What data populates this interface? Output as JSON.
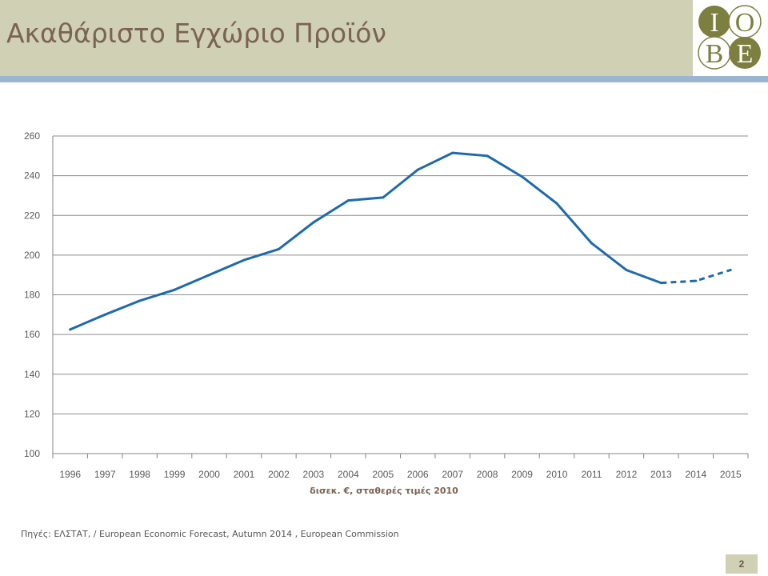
{
  "header": {
    "title": "Ακαθάριστο Εγχώριο Προϊόν",
    "logo_letters": [
      "I",
      "O",
      "B",
      "E"
    ]
  },
  "chart_data": {
    "type": "line",
    "title": "",
    "xlabel": "δισεκ. €, σταθερές τιμές 2010",
    "ylabel": "",
    "categories": [
      "1996",
      "1997",
      "1998",
      "1999",
      "2000",
      "2001",
      "2002",
      "2003",
      "2004",
      "2005",
      "2006",
      "2007",
      "2008",
      "2009",
      "2010",
      "2011",
      "2012",
      "2013",
      "2014",
      "2015"
    ],
    "series": [
      {
        "values": [
          162.5,
          170.0,
          177.0,
          182.5,
          190.0,
          197.5,
          203.0,
          216.5,
          227.5,
          229.0,
          243.0,
          251.5,
          250.0,
          239.5,
          226.0,
          206.0,
          192.5,
          186.0,
          187.0,
          192.5
        ],
        "dashed_from_index": 17,
        "color": "#1f6aad"
      }
    ],
    "ylim": [
      100,
      260
    ],
    "yticks": [
      100,
      120,
      140,
      160,
      180,
      200,
      220,
      240,
      260
    ],
    "grid": true
  },
  "footer": {
    "source": "Πηγές: ΕΛΣΤΑΤ, / European Economic Forecast, Autumn 2014 , European Commission",
    "page_number": "2"
  }
}
